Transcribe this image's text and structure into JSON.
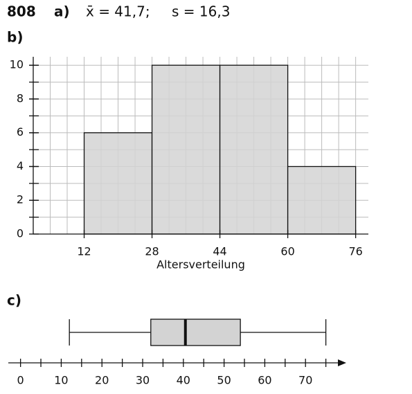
{
  "exercise": "808",
  "part_a": {
    "label": "a)",
    "mean": "x̄ = 41,7;",
    "sd": "s = 16,3"
  },
  "chart_data": [
    {
      "type": "histogram",
      "label": "b)",
      "x_label": "Altersverteilung",
      "bins": [
        12,
        28,
        44,
        60,
        76
      ],
      "counts": [
        6,
        10,
        10,
        4
      ],
      "color": "#d3d3d3",
      "xlim": [
        0,
        79
      ],
      "ylim": [
        0,
        10.5
      ],
      "xticks": [
        12,
        28,
        44,
        60,
        76
      ],
      "yticks": [
        0,
        2,
        4,
        6,
        8,
        10
      ],
      "grid": true,
      "x_grid_step": 4,
      "y_grid_step": 1
    },
    {
      "type": "boxplot",
      "label": "c)",
      "min": 12,
      "q1": 32,
      "median": 40.5,
      "q3": 54,
      "max": 75,
      "color": "#d3d3d3",
      "xlim": [
        -3,
        80
      ],
      "xticks": [
        0,
        10,
        20,
        30,
        40,
        50,
        60,
        70
      ],
      "minor_step": 5
    }
  ]
}
